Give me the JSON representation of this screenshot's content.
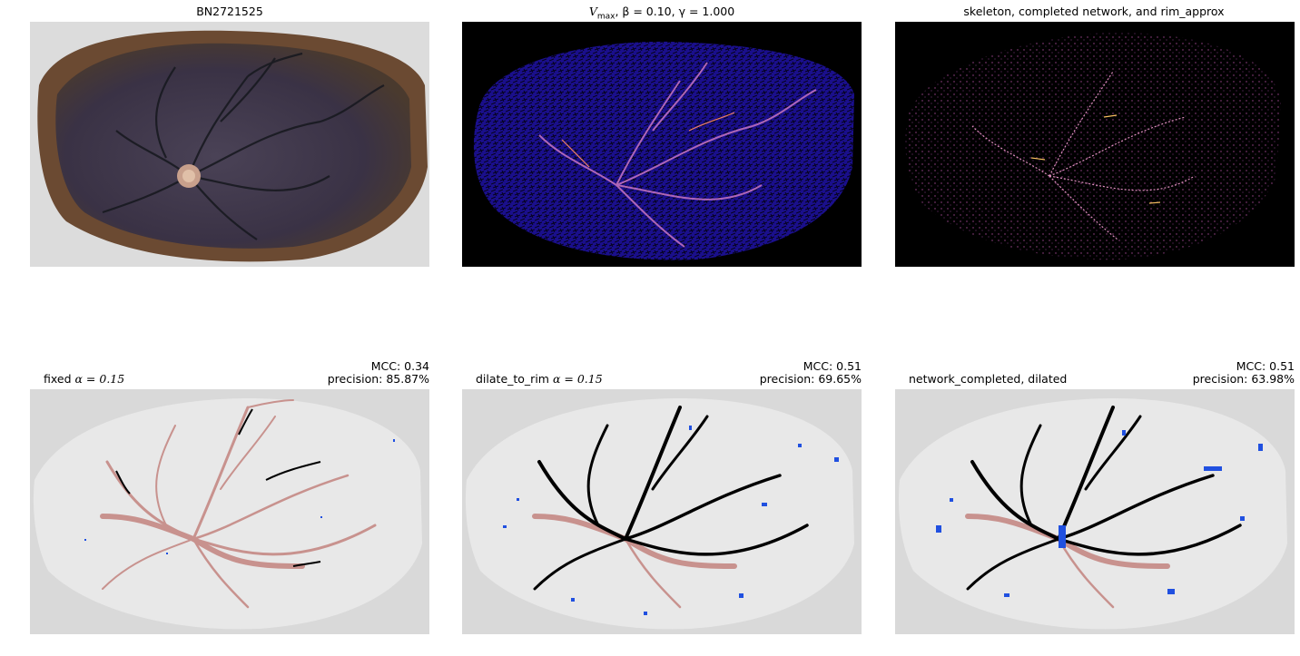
{
  "panels": [
    {
      "id": "photo",
      "title": "BN2721525"
    },
    {
      "id": "vmax",
      "title_var": "V",
      "title_sub": "max",
      "title_rest": ", β = 0.10, γ = 1.000"
    },
    {
      "id": "skeleton",
      "title": "skeleton, completed network, and rim_approx"
    },
    {
      "id": "fixed",
      "title_text": "fixed ",
      "title_param": "α = 0.15",
      "mcc": "MCC: 0.34",
      "precision": "precision: 85.87%"
    },
    {
      "id": "dilate",
      "title_text": "dilate_to_rim ",
      "title_param": "α = 0.15",
      "mcc": "MCC: 0.51",
      "precision": "precision: 69.65%"
    },
    {
      "id": "network",
      "title": "network_completed, dilated",
      "mcc": "MCC: 0.51",
      "precision": "precision: 63.98%"
    }
  ],
  "colors": {
    "background_region": "#d9d9d9",
    "placenta_region": "#e8e8e8",
    "true_positive": "#000000",
    "false_negative": "#c8928e",
    "false_positive": "#2050e0",
    "vmax_base": "#1a0f8c",
    "skeleton_dots": "#c060a0"
  }
}
